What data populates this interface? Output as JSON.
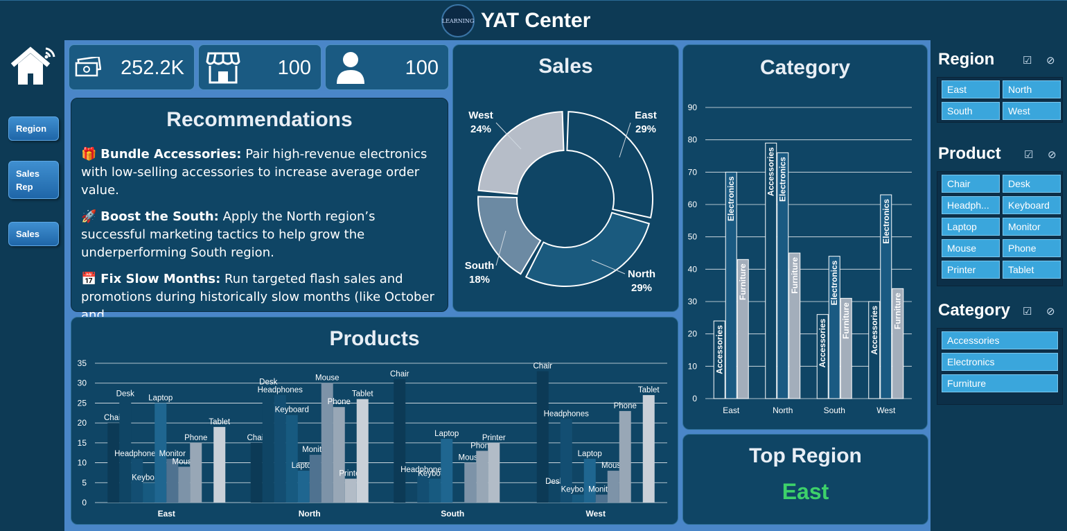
{
  "app": {
    "title": "YAT Center",
    "logo_text": "LEARNING"
  },
  "nav": {
    "items": [
      {
        "label": "Region"
      },
      {
        "label": "Sales Rep"
      },
      {
        "label": "Sales"
      }
    ]
  },
  "kpis": [
    {
      "icon": "money-icon",
      "value": "252.2K"
    },
    {
      "icon": "store-icon",
      "value": "100"
    },
    {
      "icon": "user-icon",
      "value": "100"
    }
  ],
  "recommendations": {
    "title": "Recommendations",
    "items": [
      {
        "emoji": "🎁",
        "heading": "Bundle Accessories:",
        "text": " Pair high-revenue electronics with low-selling accessories to increase average order value."
      },
      {
        "emoji": "🚀",
        "heading": "Boost the South:",
        "text": " Apply the North region’s successful marketing tactics to help grow the underperforming South region."
      },
      {
        "emoji": "📅",
        "heading": "Fix Slow Months:",
        "text": " Run targeted flash sales and promotions during historically slow months (like October and"
      }
    ]
  },
  "top_region": {
    "title": "Top Region",
    "value": "East",
    "color": "#3dd16a"
  },
  "colors": {
    "accent": "#3aa6dc",
    "panel": "#0f4565",
    "background": "#4a86c8"
  },
  "slicers": [
    {
      "title": "Region",
      "items": [
        "East",
        "North",
        "South",
        "West"
      ]
    },
    {
      "title": "Product",
      "items": [
        "Chair",
        "Desk",
        "Headph...",
        "Keyboard",
        "Laptop",
        "Monitor",
        "Mouse",
        "Phone",
        "Printer",
        "Tablet"
      ]
    },
    {
      "title": "Category",
      "items": [
        "Accessories",
        "Electronics",
        "Furniture"
      ]
    }
  ],
  "chart_data": [
    {
      "type": "pie",
      "title": "Sales",
      "donut": true,
      "categories": [
        "East",
        "North",
        "South",
        "West"
      ],
      "values": [
        29,
        29,
        18,
        24
      ],
      "labels": [
        "29%",
        "29%",
        "18%",
        "24%"
      ],
      "colors": [
        "#0f4565",
        "#1a5a7e",
        "#6c8aa3",
        "#b6bdc8"
      ]
    },
    {
      "type": "bar",
      "title": "Category",
      "categories": [
        "East",
        "North",
        "South",
        "West"
      ],
      "series": [
        {
          "name": "Accessories",
          "values": [
            24,
            79,
            26,
            30
          ],
          "color": "#0f4565"
        },
        {
          "name": "Electronics",
          "values": [
            70,
            76,
            44,
            63
          ],
          "color": "#1a5a82"
        },
        {
          "name": "Furniture",
          "values": [
            43,
            45,
            31,
            34
          ],
          "color": "#a3aebb"
        }
      ],
      "yticks": [
        0,
        10,
        20,
        30,
        40,
        50,
        60,
        70,
        80,
        90
      ],
      "ylim": [
        0,
        90
      ],
      "grid": true
    },
    {
      "type": "bar",
      "title": "Products",
      "categories": [
        "East",
        "North",
        "South",
        "West"
      ],
      "series": [
        {
          "name": "Chair",
          "values": [
            20,
            15,
            31,
            33
          ],
          "color": "#0c3a56"
        },
        {
          "name": "Desk",
          "values": [
            26,
            29,
            0,
            4
          ],
          "color": "#0f4565"
        },
        {
          "name": "Headphones",
          "values": [
            11,
            27,
            7,
            21
          ],
          "color": "#134e72"
        },
        {
          "name": "Keyboard",
          "values": [
            5,
            22,
            6,
            2
          ],
          "color": "#175a80"
        },
        {
          "name": "Laptop",
          "values": [
            25,
            8,
            16,
            11
          ],
          "color": "#1f6690"
        },
        {
          "name": "Monitor",
          "values": [
            11,
            12,
            0,
            2
          ],
          "color": "#4f7290"
        },
        {
          "name": "Mouse",
          "values": [
            9,
            30,
            10,
            8
          ],
          "color": "#7d93a8"
        },
        {
          "name": "Phone",
          "values": [
            15,
            24,
            13,
            23
          ],
          "color": "#98a7b6"
        },
        {
          "name": "Printer",
          "values": [
            0,
            6,
            15,
            0
          ],
          "color": "#b2bcc7"
        },
        {
          "name": "Tablet",
          "values": [
            19,
            26,
            0,
            27
          ],
          "color": "#c9d0d8"
        }
      ],
      "yticks": [
        0,
        5,
        10,
        15,
        20,
        25,
        30,
        35
      ],
      "ylim": [
        0,
        35
      ],
      "grid": true
    }
  ]
}
